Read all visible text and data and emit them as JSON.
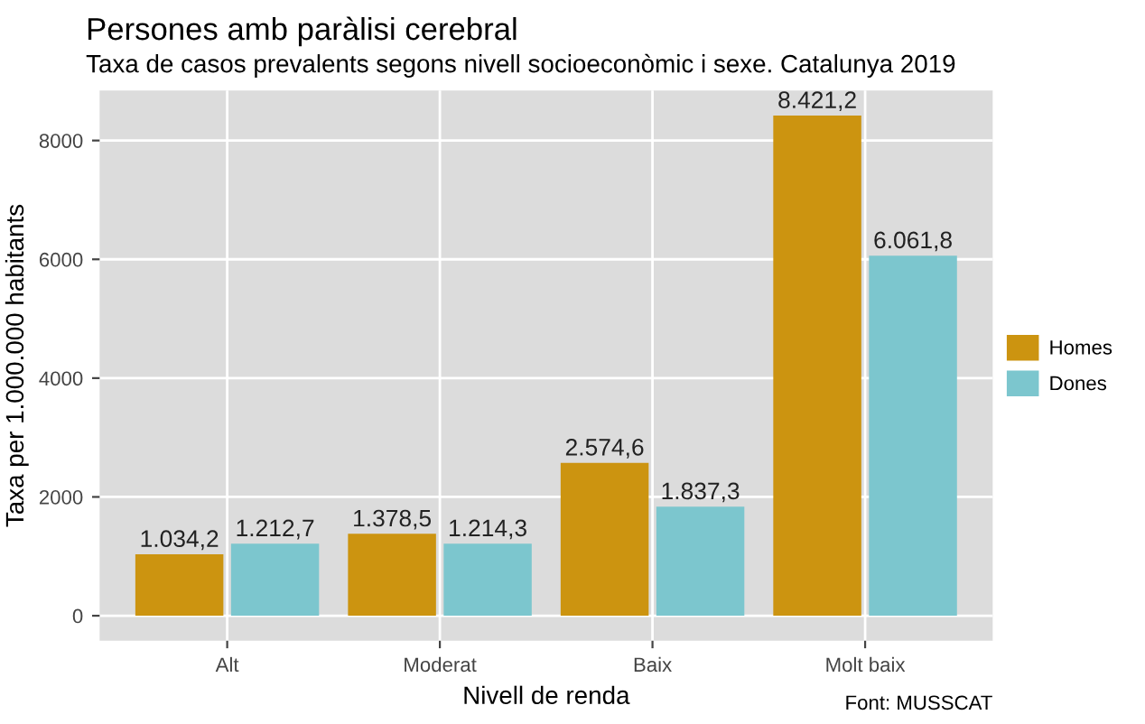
{
  "chart_data": {
    "type": "bar",
    "title": "Persones amb paràlisi cerebral",
    "subtitle": "Taxa de casos prevalents segons nivell socioeconòmic i sexe. Catalunya 2019",
    "xlabel": "Nivell de renda",
    "ylabel": "Taxa per 1.000.000 habitants",
    "categories": [
      "Alt",
      "Moderat",
      "Baix",
      "Molt baix"
    ],
    "series": [
      {
        "name": "Homes",
        "color": "#cc9410",
        "values": [
          1034.2,
          1378.5,
          2574.6,
          8421.2
        ],
        "value_labels": [
          "1.034,2",
          "1.378,5",
          "2.574,6",
          "8.421,2"
        ]
      },
      {
        "name": "Dones",
        "color": "#7cc6ce",
        "values": [
          1212.7,
          1214.3,
          1837.3,
          6061.8
        ],
        "value_labels": [
          "1.212,7",
          "1.214,3",
          "1.837,3",
          "6.061,8"
        ]
      }
    ],
    "ylim": [
      -421,
      8842
    ],
    "yticks": [
      0,
      2000,
      4000,
      6000,
      8000
    ],
    "grid": true,
    "legend": "right",
    "annotations": [
      "Font: MUSSCAT"
    ]
  }
}
